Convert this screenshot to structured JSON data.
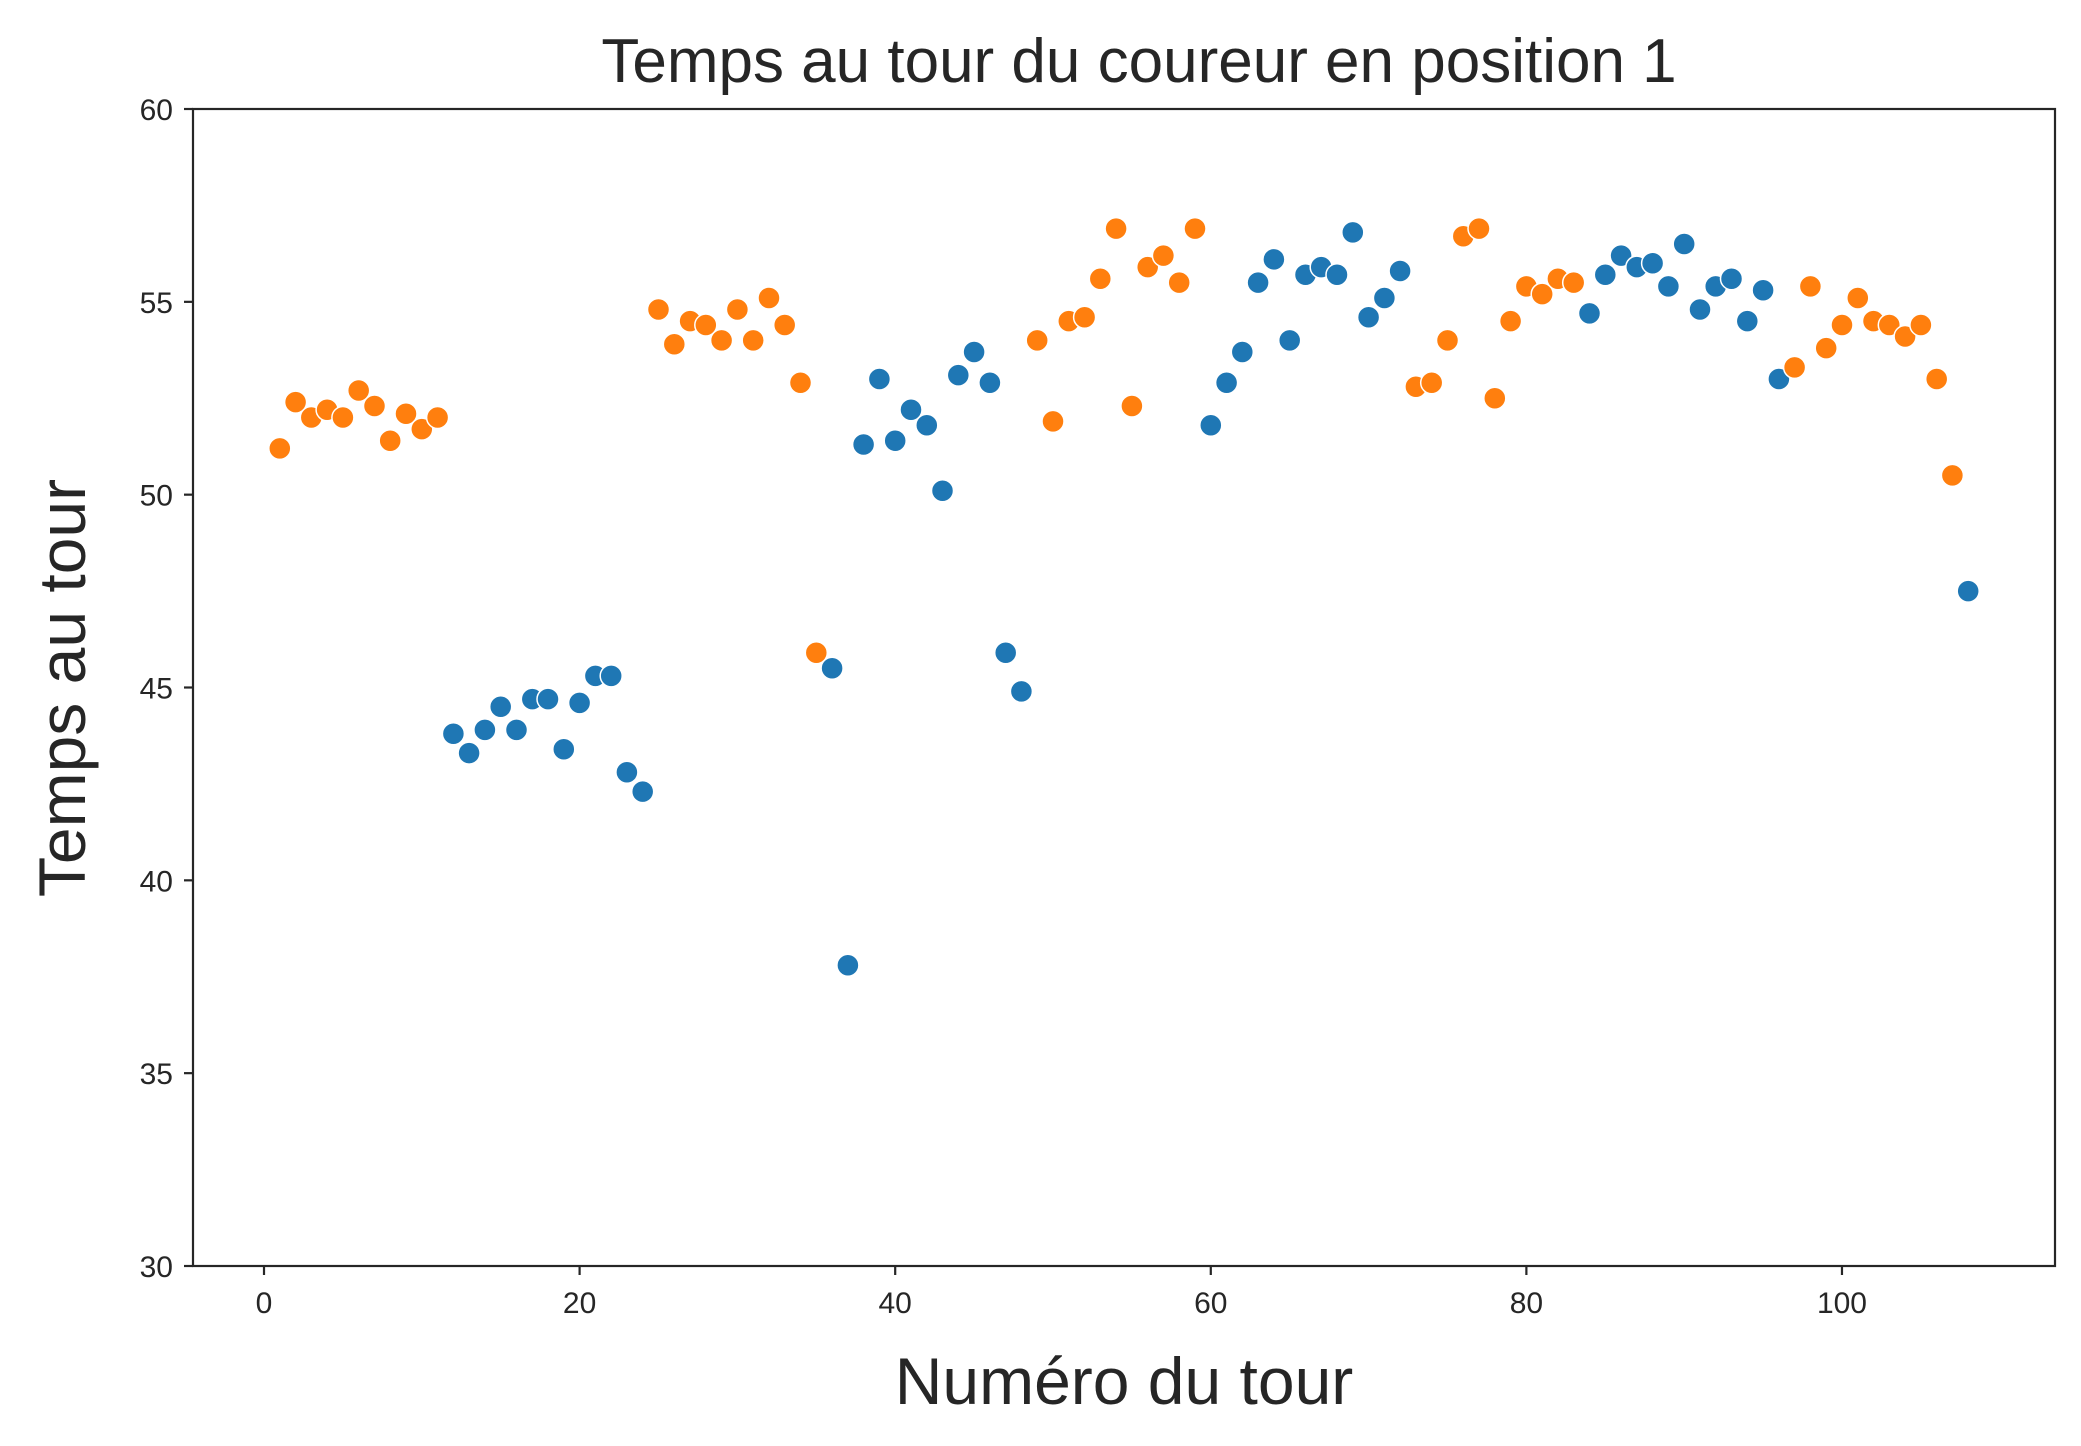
{
  "chart_data": {
    "type": "scatter",
    "title": "Temps au tour du coureur en position 1",
    "xlabel": "Numéro du tour",
    "ylabel": "Temps au tour",
    "xlim": [
      -4.5,
      113.5
    ],
    "ylim": [
      30,
      60
    ],
    "x_ticks": [
      "0",
      "20",
      "40",
      "60",
      "80",
      "100"
    ],
    "x_tick_values": [
      0,
      20,
      40,
      60,
      80,
      100
    ],
    "y_ticks": [
      "30",
      "35",
      "40",
      "45",
      "50",
      "55",
      "60"
    ],
    "y_tick_values": [
      30,
      35,
      40,
      45,
      50,
      55,
      60
    ],
    "grid": false,
    "series": [
      {
        "color": "#1f77b4",
        "points": [
          [
            12,
            43.8
          ],
          [
            13,
            43.3
          ],
          [
            14,
            43.9
          ],
          [
            15,
            44.5
          ],
          [
            16,
            43.9
          ],
          [
            17,
            44.7
          ],
          [
            18,
            44.7
          ],
          [
            19,
            43.4
          ],
          [
            20,
            44.6
          ],
          [
            21,
            45.3
          ],
          [
            22,
            45.3
          ],
          [
            23,
            42.8
          ],
          [
            24,
            42.3
          ],
          [
            36,
            45.5
          ],
          [
            37,
            37.8
          ],
          [
            38,
            51.3
          ],
          [
            39,
            53.0
          ],
          [
            40,
            51.4
          ],
          [
            41,
            52.2
          ],
          [
            42,
            51.8
          ],
          [
            43,
            50.1
          ],
          [
            44,
            53.1
          ],
          [
            45,
            53.7
          ],
          [
            46,
            52.9
          ],
          [
            47,
            45.9
          ],
          [
            48,
            44.9
          ],
          [
            60,
            51.8
          ],
          [
            61,
            52.9
          ],
          [
            62,
            53.7
          ],
          [
            63,
            55.5
          ],
          [
            64,
            56.1
          ],
          [
            65,
            54.0
          ],
          [
            66,
            55.7
          ],
          [
            67,
            55.9
          ],
          [
            68,
            55.7
          ],
          [
            69,
            56.8
          ],
          [
            70,
            54.6
          ],
          [
            71,
            55.1
          ],
          [
            72,
            55.8
          ],
          [
            84,
            54.7
          ],
          [
            85,
            55.7
          ],
          [
            86,
            56.2
          ],
          [
            87,
            55.9
          ],
          [
            88,
            56.0
          ],
          [
            89,
            55.4
          ],
          [
            90,
            56.5
          ],
          [
            91,
            54.8
          ],
          [
            92,
            55.4
          ],
          [
            93,
            55.6
          ],
          [
            94,
            54.5
          ],
          [
            95,
            55.3
          ],
          [
            96,
            53.0
          ],
          [
            108,
            47.5
          ]
        ]
      },
      {
        "color": "#ff7f0e",
        "points": [
          [
            1,
            51.2
          ],
          [
            2,
            52.4
          ],
          [
            3,
            52.0
          ],
          [
            4,
            52.2
          ],
          [
            5,
            52.0
          ],
          [
            6,
            52.7
          ],
          [
            7,
            52.3
          ],
          [
            8,
            51.4
          ],
          [
            9,
            52.1
          ],
          [
            10,
            51.7
          ],
          [
            11,
            52.0
          ],
          [
            25,
            54.8
          ],
          [
            26,
            53.9
          ],
          [
            27,
            54.5
          ],
          [
            28,
            54.4
          ],
          [
            29,
            54.0
          ],
          [
            30,
            54.8
          ],
          [
            31,
            54.0
          ],
          [
            32,
            55.1
          ],
          [
            33,
            54.4
          ],
          [
            34,
            52.9
          ],
          [
            35,
            45.9
          ],
          [
            49,
            54.0
          ],
          [
            50,
            51.9
          ],
          [
            51,
            54.5
          ],
          [
            52,
            54.6
          ],
          [
            53,
            55.6
          ],
          [
            54,
            56.9
          ],
          [
            55,
            52.3
          ],
          [
            56,
            55.9
          ],
          [
            57,
            56.2
          ],
          [
            58,
            55.5
          ],
          [
            59,
            56.9
          ],
          [
            73,
            52.8
          ],
          [
            74,
            52.9
          ],
          [
            75,
            54.0
          ],
          [
            76,
            56.7
          ],
          [
            77,
            56.9
          ],
          [
            78,
            52.5
          ],
          [
            79,
            54.5
          ],
          [
            80,
            55.4
          ],
          [
            81,
            55.2
          ],
          [
            82,
            55.6
          ],
          [
            83,
            55.5
          ],
          [
            97,
            53.3
          ],
          [
            98,
            55.4
          ],
          [
            99,
            53.8
          ],
          [
            100,
            54.4
          ],
          [
            101,
            55.1
          ],
          [
            102,
            54.5
          ],
          [
            103,
            54.4
          ],
          [
            104,
            54.1
          ],
          [
            105,
            54.4
          ],
          [
            106,
            53.0
          ],
          [
            107,
            50.5
          ]
        ]
      }
    ]
  }
}
